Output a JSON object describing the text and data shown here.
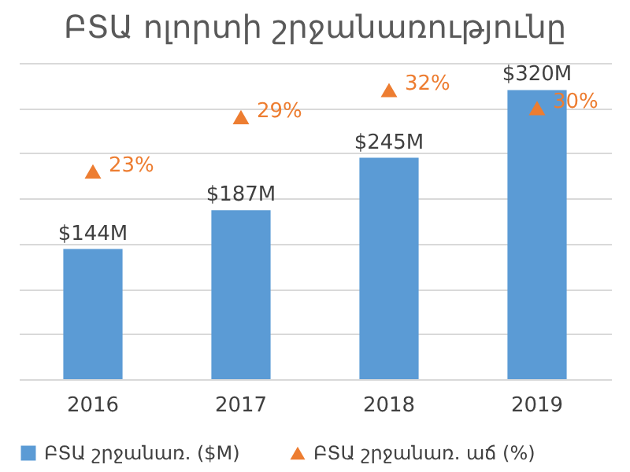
{
  "chart_data": {
    "type": "bar",
    "title": "ԲՏԱ ոլորտի շրջանառությունը",
    "categories": [
      "2016",
      "2017",
      "2018",
      "2019"
    ],
    "series": [
      {
        "name": "ԲՏԱ շրջանառ. ($M)",
        "color": "#5b9bd5",
        "values": [
          144,
          187,
          245,
          320
        ],
        "value_labels": [
          "$144M",
          "$187M",
          "$245M",
          "$320M"
        ]
      },
      {
        "name": "ԲՏԱ շրջանառ. աճ (%)",
        "type": "scatter",
        "axis": "y2",
        "marker": "triangle",
        "color": "#ed7d31",
        "values": [
          23,
          29,
          32,
          30
        ],
        "value_labels": [
          "23%",
          "29%",
          "32%",
          "30%"
        ]
      }
    ],
    "ylim": [
      0,
      350
    ],
    "yticks": [
      {
        "value": 0,
        "label": null
      },
      {
        "value": 50,
        "label": null
      },
      {
        "value": 100,
        "label": null
      },
      {
        "value": 150,
        "label": null
      },
      {
        "value": 200,
        "label": null
      },
      {
        "value": 250,
        "label": null
      },
      {
        "value": 300,
        "label": null
      },
      {
        "value": 350,
        "label": null
      }
    ],
    "y2lim": [
      0,
      35
    ],
    "grid": "y",
    "tick_labels": "x",
    "legend": "bottom"
  }
}
